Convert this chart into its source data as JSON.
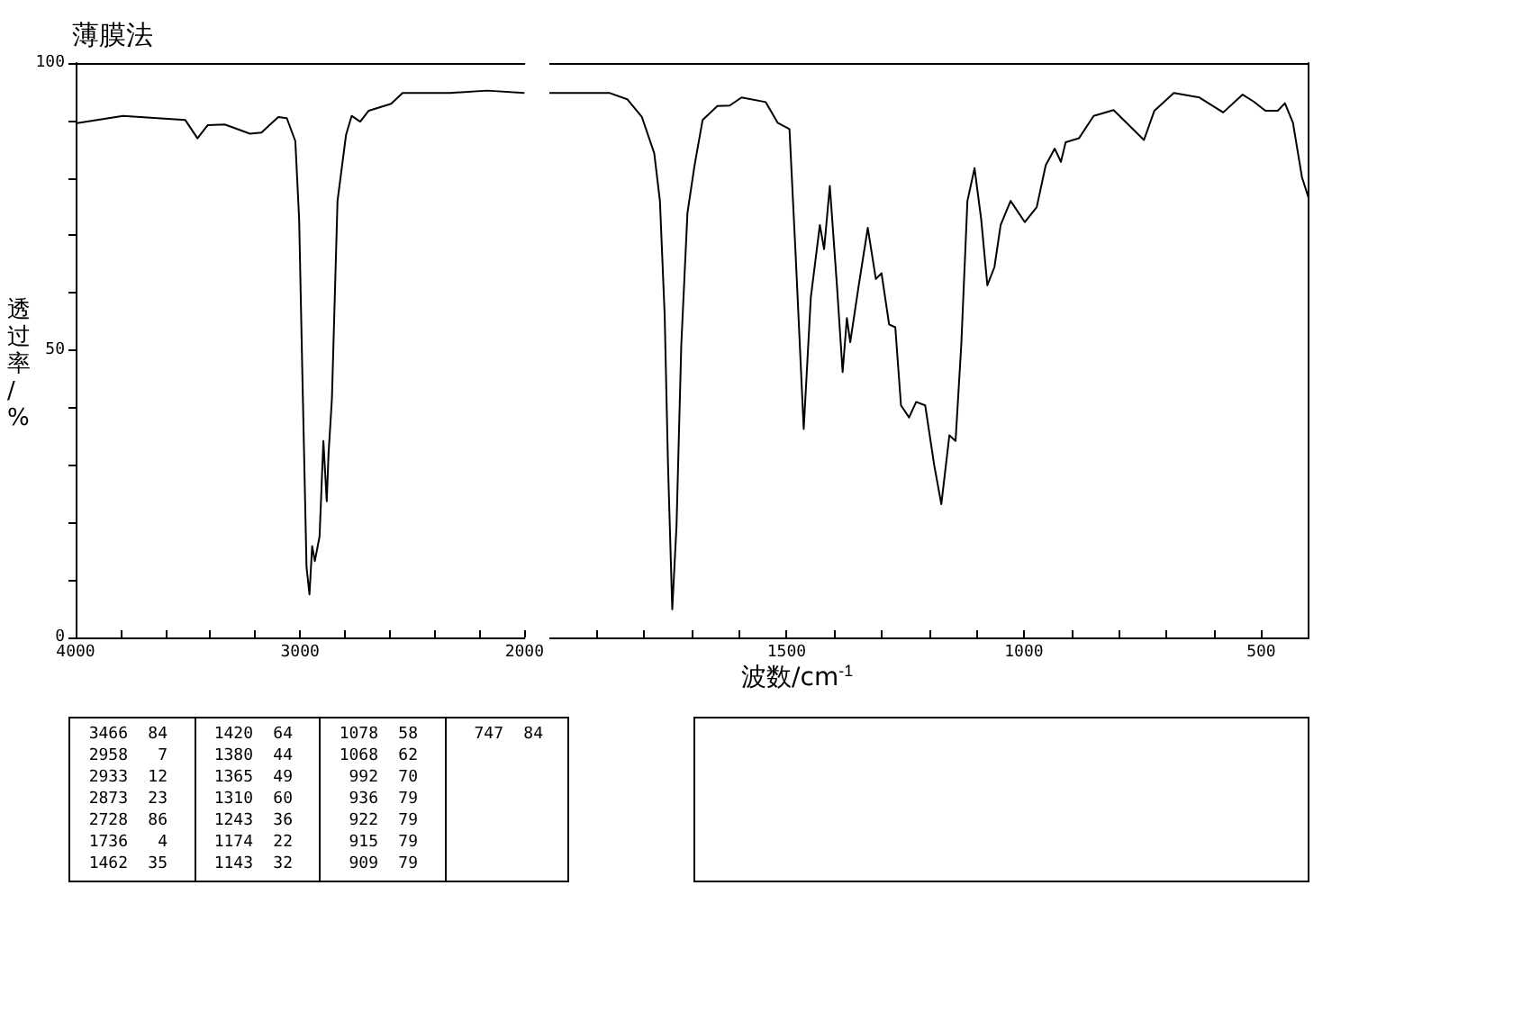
{
  "chart_data": [
    {
      "type": "line",
      "title": "薄膜法",
      "ylabel": "透过率/%",
      "x": [
        4000,
        3789,
        3512,
        3457,
        3411,
        3336,
        3223,
        3172,
        3097,
        3059,
        3021,
        3004,
        2989,
        2971,
        2958,
        2946,
        2934,
        2913,
        2896,
        2881,
        2873,
        2858,
        2833,
        2795,
        2770,
        2732,
        2694,
        2594,
        2543,
        2330,
        2166,
        2000
      ],
      "series": [
        {
          "color": "#000000",
          "values": [
            89.5,
            90.8,
            90.1,
            86.9,
            89.2,
            89.3,
            87.7,
            87.9,
            90.6,
            90.4,
            86.4,
            72.8,
            44.6,
            12.2,
            7.5,
            15.9,
            13.3,
            17.6,
            34.2,
            23.7,
            32,
            41.5,
            76,
            87.5,
            90.8,
            89.8,
            91.7,
            92.9,
            94.8,
            94.8,
            95.2,
            94.8
          ]
        }
      ],
      "xlim": [
        4000,
        2000
      ],
      "xticks": [
        4000,
        {
          "value": 3800,
          "label": null
        },
        {
          "value": 3600,
          "label": null
        },
        {
          "value": 3400,
          "label": null
        },
        {
          "value": 3200,
          "label": null
        },
        3000,
        {
          "value": 2800,
          "label": null
        },
        {
          "value": 2600,
          "label": null
        },
        {
          "value": 2400,
          "label": null
        },
        {
          "value": 2200,
          "label": null
        },
        2000
      ],
      "ylim": [
        0,
        100
      ],
      "yticks": [
        0,
        {
          "value": 10,
          "label": null
        },
        {
          "value": 20,
          "label": null
        },
        {
          "value": 30,
          "label": null
        },
        {
          "value": 40,
          "label": null
        },
        50,
        {
          "value": 60,
          "label": null
        },
        {
          "value": 70,
          "label": null
        },
        {
          "value": 80,
          "label": null
        },
        {
          "value": 90,
          "label": null
        },
        100
      ],
      "marker": "none",
      "line_style": "solid",
      "annotations": [
        "3466 84",
        "2958 7",
        "2933 12",
        "2873 23",
        "2728 86",
        "1736 4",
        "1462 35",
        "1420 64",
        "1380 44",
        "1365 49",
        "1310 60",
        "1243 36",
        "1174 22",
        "1143 32",
        "1078 58",
        "1068 62",
        "992 70",
        "936 79",
        "922 79",
        "915 79",
        "909 79",
        "747 84"
      ]
    },
    {
      "type": "line",
      "xlabel": "波数/cm$^{-1}$",
      "x": [
        2000,
        1874,
        1836,
        1805,
        1779,
        1767,
        1757,
        1750,
        1741,
        1732,
        1722,
        1709,
        1694,
        1677,
        1646,
        1620,
        1595,
        1544,
        1519,
        1494,
        1481,
        1464,
        1449,
        1430,
        1421,
        1409,
        1394,
        1382,
        1373,
        1366,
        1348,
        1329,
        1312,
        1300,
        1284,
        1271,
        1259,
        1242,
        1227,
        1208,
        1189,
        1174,
        1157,
        1144,
        1132,
        1119,
        1104,
        1090,
        1077,
        1062,
        1049,
        1028,
        998,
        973,
        954,
        935,
        922,
        912,
        884,
        853,
        811,
        747,
        725,
        684,
        630,
        580,
        539,
        516,
        491,
        465,
        450,
        433,
        414,
        400
      ],
      "series": [
        {
          "color": "#000000",
          "values": [
            94.8,
            94.8,
            93.7,
            90.6,
            84.3,
            76,
            56.1,
            30.1,
            4.9,
            19.5,
            50.9,
            73.9,
            82.2,
            90.1,
            92.5,
            92.6,
            94,
            93.2,
            89.6,
            88.5,
            66.6,
            36.3,
            59.2,
            71.8,
            67.6,
            78.6,
            61.3,
            46.2,
            55.6,
            51.4,
            61.3,
            71.3,
            62.4,
            63.4,
            54.5,
            54,
            40.4,
            38.3,
            41,
            40.4,
            30,
            23.2,
            35.2,
            34.2,
            50.9,
            76,
            81.7,
            72.8,
            61.3,
            64.5,
            71.8,
            76,
            72.3,
            74.9,
            82.2,
            85.1,
            82.8,
            86.2,
            86.9,
            90.8,
            91.8,
            86.6,
            91.7,
            94.8,
            94,
            91.4,
            94.5,
            93.3,
            91.7,
            91.7,
            93,
            89.6,
            80.1,
            76.5
          ]
        }
      ],
      "xlim": [
        2000,
        400
      ],
      "xticks": [
        {
          "value": 1900,
          "label": null
        },
        {
          "value": 1800,
          "label": null
        },
        {
          "value": 1700,
          "label": null
        },
        {
          "value": 1600,
          "label": null
        },
        1500,
        {
          "value": 1400,
          "label": null
        },
        {
          "value": 1300,
          "label": null
        },
        {
          "value": 1200,
          "label": null
        },
        {
          "value": 1100,
          "label": null
        },
        1000,
        {
          "value": 900,
          "label": null
        },
        {
          "value": 800,
          "label": null
        },
        {
          "value": 700,
          "label": null
        },
        {
          "value": 600,
          "label": null
        },
        500
      ],
      "ylim": [
        0,
        100
      ],
      "tick_labels": "x",
      "marker": "none",
      "line_style": "solid"
    }
  ]
}
